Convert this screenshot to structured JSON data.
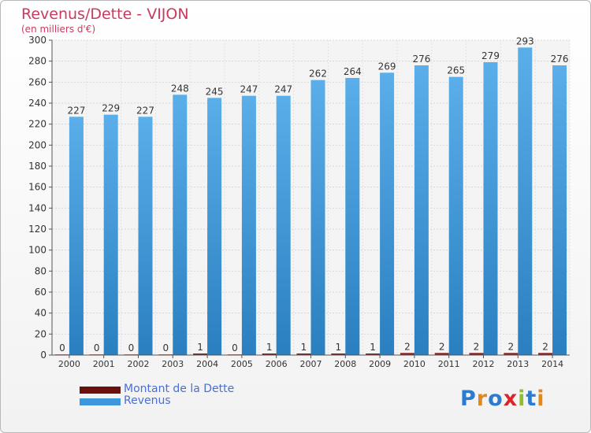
{
  "header": {
    "title": "Revenus/Dette - VIJON",
    "subtitle": "(en milliers d'€)"
  },
  "colors": {
    "title": "#c83b5e",
    "revenus_top": "#5aaee9",
    "revenus_bottom": "#2a7fc0",
    "dette": "#8b1e1e",
    "legend_text": "#4a6fd4"
  },
  "legend": {
    "items": [
      {
        "label": "Montant de la Dette",
        "color": "#6b0f0f"
      },
      {
        "label": "Revenus",
        "color": "#3f97db"
      }
    ]
  },
  "brand": {
    "text": "Proxiti"
  },
  "chart_data": {
    "type": "bar",
    "categories": [
      "2000",
      "2001",
      "2002",
      "2003",
      "2004",
      "2005",
      "2006",
      "2007",
      "2008",
      "2009",
      "2010",
      "2011",
      "2012",
      "2013",
      "2014"
    ],
    "series": [
      {
        "name": "Montant de la Dette",
        "values": [
          0,
          0,
          0,
          0,
          1,
          0,
          1,
          1,
          1,
          1,
          2,
          2,
          2,
          2,
          2
        ]
      },
      {
        "name": "Revenus",
        "values": [
          227,
          229,
          227,
          248,
          245,
          247,
          247,
          262,
          264,
          269,
          276,
          265,
          279,
          293,
          276
        ]
      }
    ],
    "yticks": [
      0,
      20,
      40,
      60,
      80,
      100,
      120,
      140,
      160,
      180,
      200,
      220,
      240,
      260,
      280,
      300
    ],
    "ylim": [
      0,
      300
    ],
    "grid": true,
    "legend_position": "bottom-left"
  }
}
